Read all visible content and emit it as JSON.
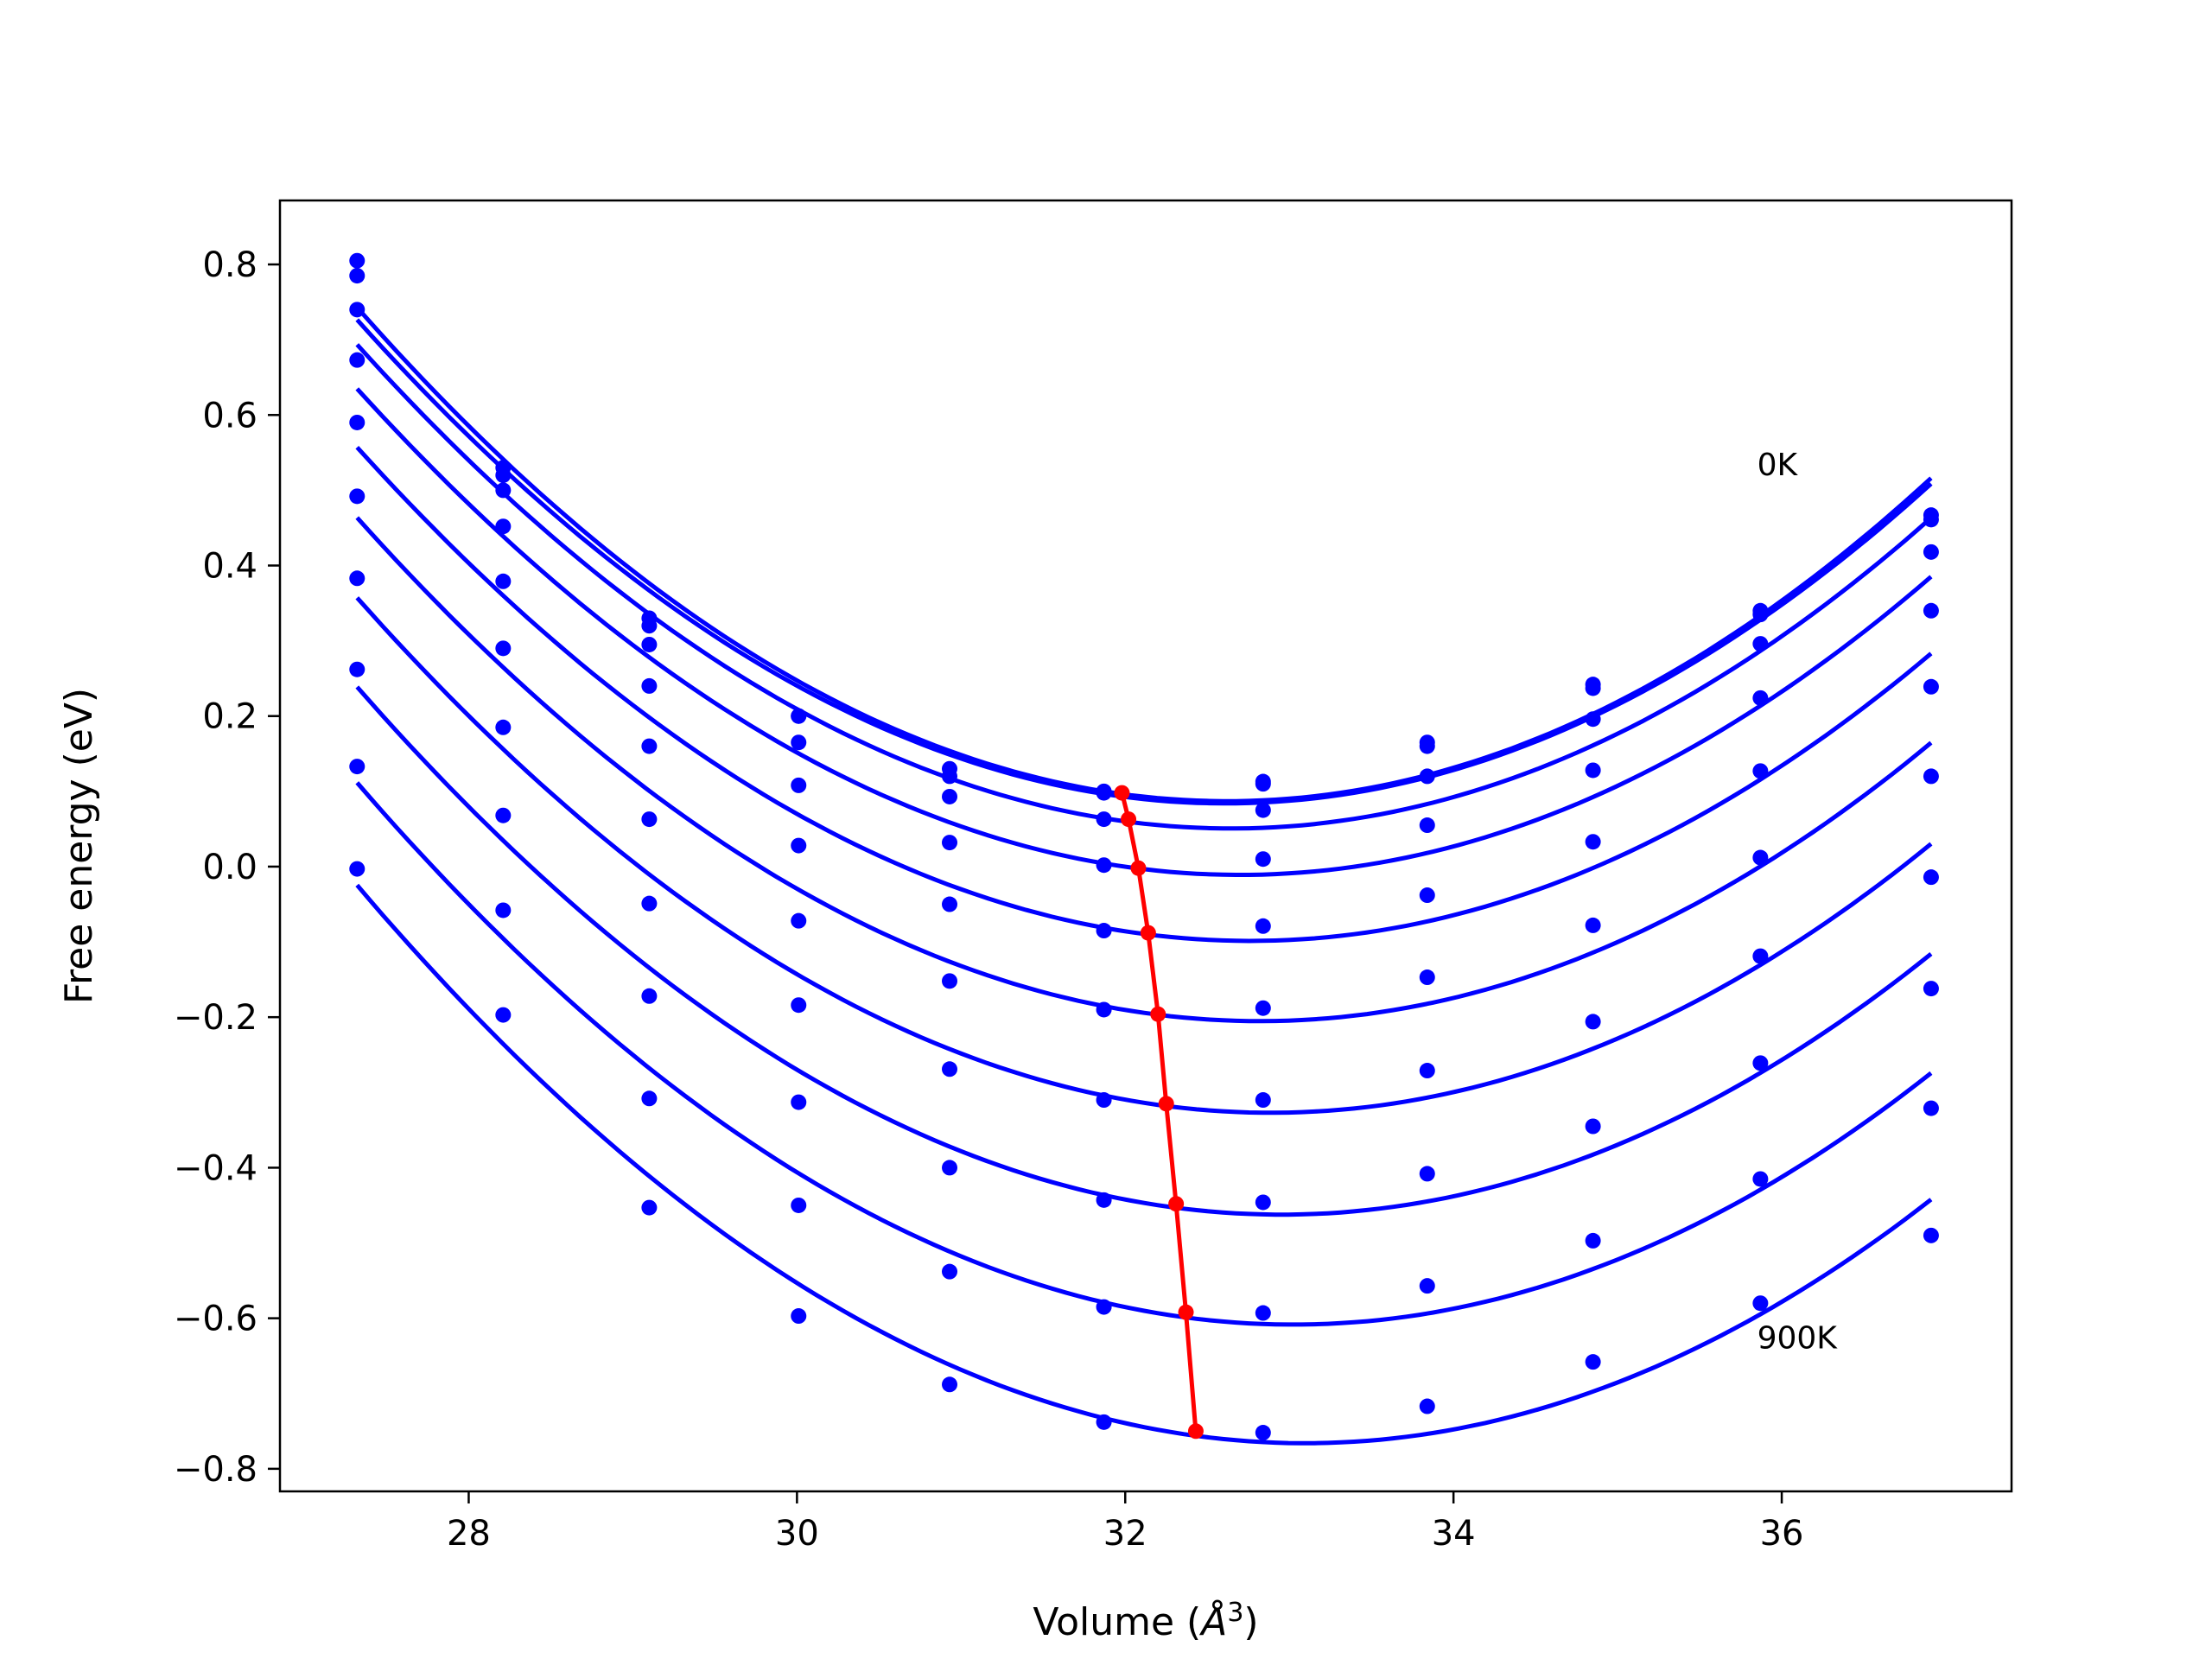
{
  "chart_data": {
    "type": "line",
    "title": "",
    "xlabel": "Volume (",
    "xlabel_unit": "Å",
    "xlabel_exp": "3",
    "xlabel_close": ")",
    "ylabel": "Free energy (eV)",
    "xlim": [
      26.85,
      37.4
    ],
    "ylim": [
      -0.83,
      0.885
    ],
    "xticks": [
      28,
      30,
      32,
      34,
      36
    ],
    "xtick_labels": [
      "28",
      "30",
      "32",
      "34",
      "36"
    ],
    "yticks": [
      0.8,
      0.6,
      0.4,
      0.2,
      0.0,
      -0.2,
      -0.4,
      -0.6,
      -0.8
    ],
    "ytick_labels": [
      "0.8",
      "0.6",
      "0.4",
      "0.2",
      "0.0",
      "−0.2",
      "−0.4",
      "−0.6",
      "−0.8"
    ],
    "grid": false,
    "annotations": [
      {
        "text": "0K",
        "x": 35.85,
        "y": 0.52
      },
      {
        "text": "900K",
        "x": 35.85,
        "y": -0.64
      }
    ],
    "x": [
      27.32,
      28.21,
      29.1,
      30.01,
      30.93,
      31.87,
      32.84,
      33.84,
      34.85,
      35.87,
      36.91
    ],
    "series": [
      {
        "color": "#0000ff",
        "values": [
          0.805,
          0.53,
          0.33,
          0.2,
          0.13,
          0.1,
          0.113,
          0.165,
          0.242,
          0.34,
          0.467
        ]
      },
      {
        "color": "#0000ff",
        "values": [
          0.785,
          0.52,
          0.32,
          0.2,
          0.12,
          0.098,
          0.11,
          0.16,
          0.237,
          0.335,
          0.461
        ]
      },
      {
        "color": "#0000ff",
        "values": [
          0.74,
          0.5,
          0.295,
          0.165,
          0.093,
          0.063,
          0.075,
          0.12,
          0.196,
          0.296,
          0.418
        ]
      },
      {
        "color": "#0000ff",
        "values": [
          0.673,
          0.452,
          0.24,
          0.108,
          0.032,
          0.002,
          0.01,
          0.055,
          0.128,
          0.224,
          0.34
        ]
      },
      {
        "color": "#0000ff",
        "values": [
          0.59,
          0.379,
          0.16,
          0.028,
          -0.05,
          -0.085,
          -0.079,
          -0.038,
          0.033,
          0.127,
          0.239
        ]
      },
      {
        "color": "#0000ff",
        "values": [
          0.492,
          0.29,
          0.063,
          -0.072,
          -0.152,
          -0.19,
          -0.188,
          -0.147,
          -0.078,
          0.012,
          0.12
        ]
      },
      {
        "color": "#0000ff",
        "values": [
          0.383,
          0.185,
          -0.049,
          -0.184,
          -0.269,
          -0.31,
          -0.31,
          -0.271,
          -0.206,
          -0.119,
          -0.014
        ]
      },
      {
        "color": "#0000ff",
        "values": [
          0.262,
          0.068,
          -0.172,
          -0.313,
          -0.4,
          -0.443,
          -0.446,
          -0.408,
          -0.345,
          -0.261,
          -0.162
        ]
      },
      {
        "color": "#0000ff",
        "values": [
          0.133,
          -0.058,
          -0.308,
          -0.45,
          -0.538,
          -0.585,
          -0.593,
          -0.557,
          -0.497,
          -0.415,
          -0.321
        ]
      },
      {
        "color": "#0000ff",
        "values": [
          -0.003,
          -0.197,
          -0.453,
          -0.597,
          -0.688,
          -0.738,
          -0.752,
          -0.717,
          -0.658,
          -0.58,
          -0.49
        ]
      }
    ],
    "minimum_curve": {
      "color": "#ff0000",
      "x": [
        31.98,
        32.02,
        32.08,
        32.14,
        32.2,
        32.25,
        32.31,
        32.37,
        32.43
      ],
      "values": [
        0.098,
        0.063,
        -0.002,
        -0.088,
        -0.196,
        -0.315,
        -0.448,
        -0.592,
        -0.75
      ]
    }
  }
}
